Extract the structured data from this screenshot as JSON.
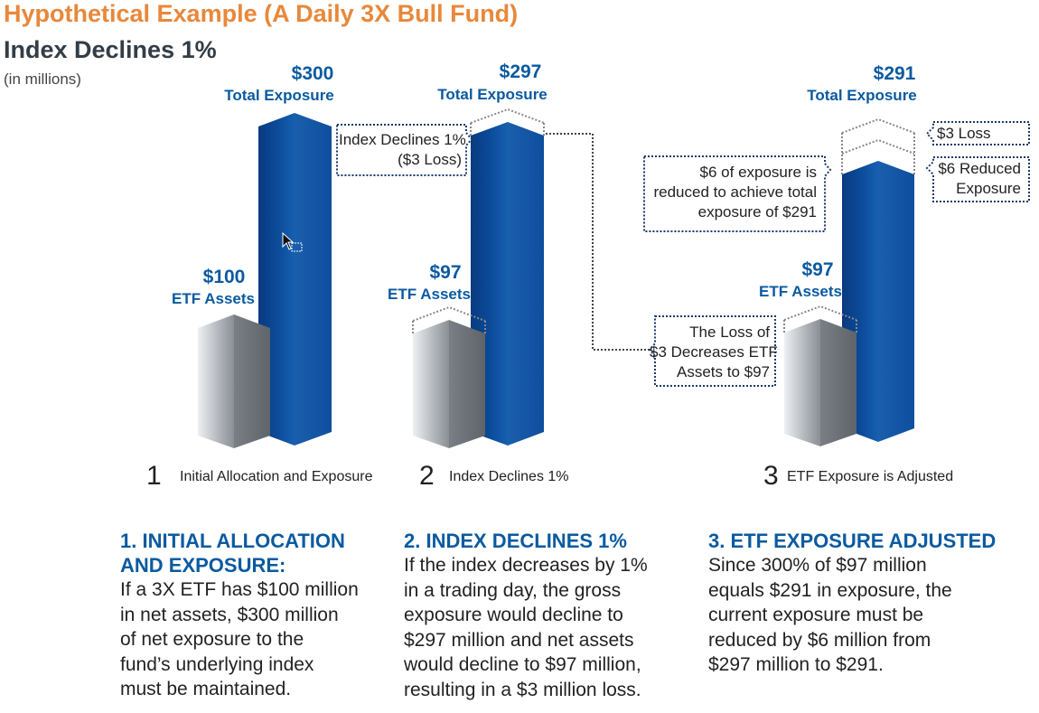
{
  "header": {
    "title": "Hypothetical Example (A Daily 3X Bull Fund)",
    "subtitle": "Index Declines 1%",
    "units": "(in millions)"
  },
  "steps": [
    {
      "number": "1",
      "label": "Initial Allocation and Exposure",
      "exposure_value": "$300",
      "exposure_label": "Total Exposure",
      "assets_value": "$100",
      "assets_label": "ETF Assets"
    },
    {
      "number": "2",
      "label": "Index Declines 1%",
      "exposure_value": "$297",
      "exposure_label": "Total Exposure",
      "assets_value": "$97",
      "assets_label": "ETF Assets"
    },
    {
      "number": "3",
      "label": "ETF Exposure is Adjusted",
      "exposure_value": "$291",
      "exposure_label": "Total Exposure",
      "assets_value": "$97",
      "assets_label": "ETF Assets"
    }
  ],
  "callouts": {
    "index_decline": [
      "Index Declines 1%",
      "($3 Loss)"
    ],
    "loss_decreases": [
      "The Loss of",
      "$3 Decreases ETF",
      "Assets to $97"
    ],
    "exposure_reduced": [
      "$6 of exposure is",
      "reduced to achieve total",
      "exposure of $291"
    ],
    "three_loss": "$3 Loss",
    "six_reduced": [
      "$6 Reduced",
      "Exposure"
    ]
  },
  "explanations": [
    {
      "heading": [
        "1. INITIAL ALLOCATION",
        "AND EXPOSURE:"
      ],
      "body": [
        "If a 3X ETF has $100 million",
        "in net assets, $300 million",
        "of net exposure to the",
        "fund’s underlying index",
        "must be maintained."
      ]
    },
    {
      "heading": [
        "2. INDEX DECLINES 1%"
      ],
      "body": [
        "If the index decreases by 1%",
        "in a trading day, the gross",
        "exposure would decline to",
        "$297 million and net assets",
        "would decline to $97 million,",
        "resulting in a $3 million loss."
      ]
    },
    {
      "heading": [
        "3. ETF EXPOSURE ADJUSTED"
      ],
      "body": [
        "Since 300% of $97 million",
        "equals $291 in exposure, the",
        "current exposure must be",
        "reduced by $6 million from",
        "$297 million to $291."
      ]
    }
  ],
  "colors": {
    "title_orange": "#e8883a",
    "accent_blue": "#0a5aa0",
    "bar_blue_dark": "#0b3f86",
    "bar_blue_light": "#1560b0",
    "bar_gray_light": "#d9dce0",
    "bar_gray_dark": "#6e7378"
  }
}
